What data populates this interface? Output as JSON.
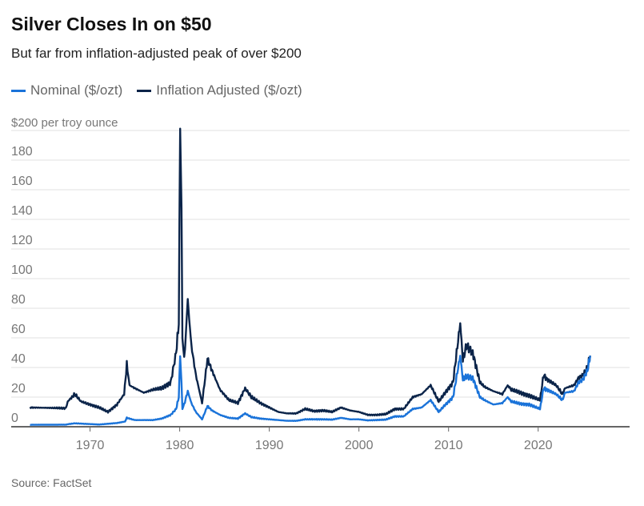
{
  "title": "Silver Closes In on $50",
  "subtitle": "But far from inflation-adjusted peak of over $200",
  "source": "Source: FactSet",
  "colors": {
    "nominal": "#1a73d9",
    "adjusted": "#0b2449",
    "grid": "#e2e2e2",
    "axis": "#666666",
    "text": "#777777"
  },
  "chart_data": {
    "type": "line",
    "title": "Silver Closes In on $50",
    "ylabel": "$200 per troy ounce",
    "xlabel": "",
    "ylim": [
      0,
      200
    ],
    "xlim": [
      1961.2,
      2030.2
    ],
    "yticks": [
      0,
      20,
      40,
      60,
      80,
      100,
      120,
      140,
      160,
      180
    ],
    "ytick_labels": [
      "0",
      "20",
      "40",
      "60",
      "80",
      "100",
      "120",
      "140",
      "160",
      "180"
    ],
    "xticks": [
      1970,
      1980,
      1990,
      2000,
      2010,
      2020
    ],
    "xtick_labels": [
      "1970",
      "1980",
      "1990",
      "2000",
      "2010",
      "2020"
    ],
    "grid": true,
    "legend_position": "top-left",
    "series": [
      {
        "name": "Nominal ($/ozt)",
        "color": "#1a73d9",
        "points": [
          [
            1963.3,
            1.3
          ],
          [
            1967.3,
            1.4
          ],
          [
            1967.6,
            1.8
          ],
          [
            1968.3,
            2.3
          ],
          [
            1970,
            1.8
          ],
          [
            1971,
            1.5
          ],
          [
            1973,
            2.5
          ],
          [
            1973.9,
            3.5
          ],
          [
            1974.1,
            6
          ],
          [
            1975,
            4.5
          ],
          [
            1977,
            4.5
          ],
          [
            1978,
            5.5
          ],
          [
            1979,
            8
          ],
          [
            1979.6,
            12
          ],
          [
            1979.9,
            20
          ],
          [
            1980.05,
            48
          ],
          [
            1980.2,
            30
          ],
          [
            1980.3,
            12
          ],
          [
            1980.5,
            15
          ],
          [
            1980.9,
            24
          ],
          [
            1981.3,
            16
          ],
          [
            1981.8,
            10
          ],
          [
            1982.5,
            5
          ],
          [
            1983.1,
            14
          ],
          [
            1983.6,
            11
          ],
          [
            1984.5,
            8
          ],
          [
            1985.5,
            6
          ],
          [
            1986.5,
            5.5
          ],
          [
            1987.3,
            9
          ],
          [
            1988,
            6.5
          ],
          [
            1989,
            5.5
          ],
          [
            1990,
            5
          ],
          [
            1992,
            4
          ],
          [
            1993,
            4
          ],
          [
            1994,
            5
          ],
          [
            1996,
            5
          ],
          [
            1997,
            4.8
          ],
          [
            1998,
            6
          ],
          [
            1999,
            5
          ],
          [
            2000,
            5
          ],
          [
            2001,
            4.3
          ],
          [
            2003,
            4.8
          ],
          [
            2004,
            7
          ],
          [
            2005,
            7
          ],
          [
            2006,
            12
          ],
          [
            2007,
            13
          ],
          [
            2008,
            18
          ],
          [
            2008.9,
            10
          ],
          [
            2009.5,
            14
          ],
          [
            2010.5,
            20
          ],
          [
            2011.3,
            48
          ],
          [
            2011.6,
            32
          ],
          [
            2012,
            34
          ],
          [
            2012.7,
            33
          ],
          [
            2013.5,
            20
          ],
          [
            2014,
            18
          ],
          [
            2015,
            15
          ],
          [
            2016,
            16
          ],
          [
            2016.6,
            20
          ],
          [
            2017,
            17
          ],
          [
            2018,
            15.5
          ],
          [
            2019,
            15
          ],
          [
            2020.2,
            12
          ],
          [
            2020.6,
            26
          ],
          [
            2021,
            25
          ],
          [
            2022,
            22
          ],
          [
            2022.7,
            18
          ],
          [
            2023,
            23
          ],
          [
            2024,
            24
          ],
          [
            2024.5,
            30
          ],
          [
            2025,
            32
          ],
          [
            2025.5,
            38
          ],
          [
            2025.8,
            48
          ]
        ]
      },
      {
        "name": "Inflation Adjusted ($/ozt)",
        "color": "#0b2449",
        "points": [
          [
            1963.3,
            13
          ],
          [
            1967.3,
            12.5
          ],
          [
            1967.5,
            17
          ],
          [
            1968.3,
            22
          ],
          [
            1969,
            17
          ],
          [
            1970,
            15
          ],
          [
            1971,
            13
          ],
          [
            1972,
            10
          ],
          [
            1973,
            15
          ],
          [
            1973.8,
            22
          ],
          [
            1974.1,
            42
          ],
          [
            1974.4,
            28
          ],
          [
            1975,
            26
          ],
          [
            1976,
            23
          ],
          [
            1977,
            25
          ],
          [
            1978,
            26
          ],
          [
            1979,
            30
          ],
          [
            1979.6,
            50
          ],
          [
            1979.9,
            70
          ],
          [
            1980.05,
            203
          ],
          [
            1980.2,
            150
          ],
          [
            1980.3,
            60
          ],
          [
            1980.5,
            45
          ],
          [
            1980.7,
            65
          ],
          [
            1980.9,
            85
          ],
          [
            1981.3,
            55
          ],
          [
            1981.8,
            35
          ],
          [
            1982.5,
            16
          ],
          [
            1983.1,
            46
          ],
          [
            1983.6,
            38
          ],
          [
            1984.5,
            25
          ],
          [
            1985.5,
            18
          ],
          [
            1986.5,
            16
          ],
          [
            1987.3,
            26
          ],
          [
            1988,
            20
          ],
          [
            1989,
            16
          ],
          [
            1990,
            13
          ],
          [
            1991,
            10
          ],
          [
            1992,
            9
          ],
          [
            1993,
            9
          ],
          [
            1994,
            12
          ],
          [
            1995,
            10.5
          ],
          [
            1996,
            11
          ],
          [
            1997,
            10
          ],
          [
            1998,
            13
          ],
          [
            1999,
            11
          ],
          [
            2000,
            10
          ],
          [
            2001,
            8
          ],
          [
            2002,
            8
          ],
          [
            2003,
            8.5
          ],
          [
            2004,
            12
          ],
          [
            2005,
            12
          ],
          [
            2006,
            20
          ],
          [
            2007,
            22
          ],
          [
            2008,
            28
          ],
          [
            2008.9,
            17
          ],
          [
            2009.5,
            22
          ],
          [
            2010.5,
            30
          ],
          [
            2011.3,
            70
          ],
          [
            2011.6,
            45
          ],
          [
            2012,
            55
          ],
          [
            2012.7,
            50
          ],
          [
            2013.5,
            30
          ],
          [
            2014,
            27
          ],
          [
            2015,
            24
          ],
          [
            2016,
            22
          ],
          [
            2016.6,
            28
          ],
          [
            2017,
            25
          ],
          [
            2018,
            23
          ],
          [
            2019,
            21
          ],
          [
            2020.2,
            18
          ],
          [
            2020.6,
            35
          ],
          [
            2021,
            32
          ],
          [
            2022,
            28
          ],
          [
            2022.7,
            22
          ],
          [
            2023,
            26
          ],
          [
            2024,
            28
          ],
          [
            2024.5,
            33
          ],
          [
            2025,
            35
          ],
          [
            2025.5,
            40
          ],
          [
            2025.8,
            48
          ]
        ]
      }
    ]
  }
}
